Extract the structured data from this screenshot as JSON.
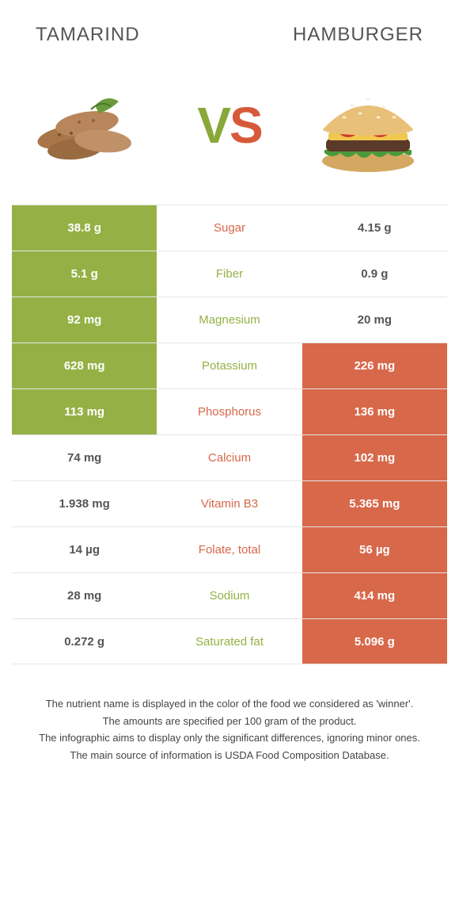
{
  "titles": {
    "left": "Tamarind",
    "right": "Hamburger"
  },
  "vs": {
    "v": "V",
    "s": "S"
  },
  "colors": {
    "green": "#95b145",
    "orange": "#d8684a"
  },
  "rows": [
    {
      "left": "38.8 g",
      "label": "Sugar",
      "right": "4.15 g",
      "leftBg": "green",
      "rightBg": "none",
      "labelColor": "orange"
    },
    {
      "left": "5.1 g",
      "label": "Fiber",
      "right": "0.9 g",
      "leftBg": "green",
      "rightBg": "none",
      "labelColor": "green"
    },
    {
      "left": "92 mg",
      "label": "Magnesium",
      "right": "20 mg",
      "leftBg": "green",
      "rightBg": "none",
      "labelColor": "green"
    },
    {
      "left": "628 mg",
      "label": "Potassium",
      "right": "226 mg",
      "leftBg": "green",
      "rightBg": "orange",
      "labelColor": "green"
    },
    {
      "left": "113 mg",
      "label": "Phosphorus",
      "right": "136 mg",
      "leftBg": "green",
      "rightBg": "orange",
      "labelColor": "orange"
    },
    {
      "left": "74 mg",
      "label": "Calcium",
      "right": "102 mg",
      "leftBg": "none",
      "rightBg": "orange",
      "labelColor": "orange"
    },
    {
      "left": "1.938 mg",
      "label": "Vitamin B3",
      "right": "5.365 mg",
      "leftBg": "none",
      "rightBg": "orange",
      "labelColor": "orange"
    },
    {
      "left": "14 µg",
      "label": "Folate, total",
      "right": "56 µg",
      "leftBg": "none",
      "rightBg": "orange",
      "labelColor": "orange"
    },
    {
      "left": "28 mg",
      "label": "Sodium",
      "right": "414 mg",
      "leftBg": "none",
      "rightBg": "orange",
      "labelColor": "green"
    },
    {
      "left": "0.272 g",
      "label": "Saturated fat",
      "right": "5.096 g",
      "leftBg": "none",
      "rightBg": "orange",
      "labelColor": "green"
    }
  ],
  "footer": [
    "The nutrient name is displayed in the color of the food we considered as 'winner'.",
    "The amounts are specified per 100 gram of the product.",
    "The infographic aims to display only the significant differences, ignoring minor ones.",
    "The main source of information is USDA Food Composition Database."
  ]
}
